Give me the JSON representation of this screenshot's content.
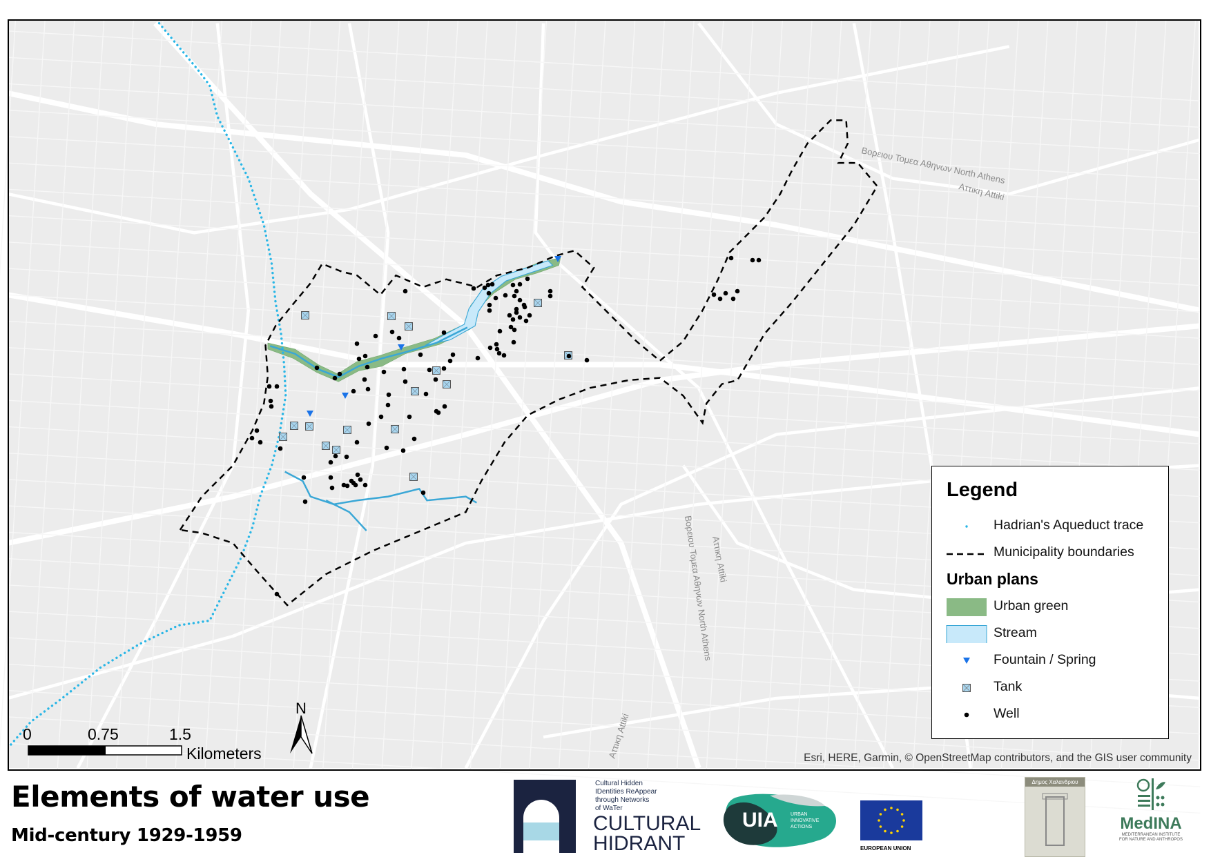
{
  "title": "Elements of water use",
  "subtitle": "Mid-century 1929-1959",
  "legend": {
    "heading": "Legend",
    "items": [
      {
        "label": "Hadrian's Aqueduct trace",
        "symbol": "dotted-line",
        "color": "#29b6e6"
      },
      {
        "label": "Municipality boundaries",
        "symbol": "dashed-line",
        "color": "#000000"
      }
    ],
    "group_heading": "Urban plans",
    "group_items": [
      {
        "label": "Urban green",
        "symbol": "fill",
        "color": "#8aba85"
      },
      {
        "label": "Stream",
        "symbol": "fill-outline",
        "color": "#c8e9fa",
        "outline": "#3aa7d6"
      },
      {
        "label": "Fountain / Spring",
        "symbol": "triangle-down",
        "color": "#1a73e8"
      },
      {
        "label": "Tank",
        "symbol": "boxed-x",
        "color": "#a9d6ef"
      },
      {
        "label": "Well",
        "symbol": "dot",
        "color": "#000000"
      }
    ]
  },
  "scale_bar": {
    "ticks": [
      "0",
      "0.75",
      "1.5"
    ],
    "unit": "Kilometers"
  },
  "north_arrow": {
    "label": "N"
  },
  "attribution": "Esri, HERE, Garmin, © OpenStreetMap contributors, and the GIS user community",
  "map_labels": [
    "Βορειου Τομεα Αθηνων North Athens",
    "Αττικη Attiki",
    "Βορειου Τομεα Αθηνων North Athens",
    "Αττικη Attiki",
    "Αττικη Attiki"
  ],
  "logos": {
    "cultural_hidrant": {
      "tagline": [
        "Cultural Hidden",
        "IDentities ReAppear",
        "through Networks",
        "of WaTer"
      ],
      "name": [
        "CULTURAL",
        "HIDRANT"
      ]
    },
    "uia": {
      "name": "UIA",
      "tagline": [
        "URBAN",
        "INNOVATIVE",
        "ACTIONS"
      ]
    },
    "eu": {
      "name": "EUROPEAN UNION"
    },
    "dimos": {
      "name": "Δημος Χαλανδριου"
    },
    "medina": {
      "name": "MedINA",
      "tagline": [
        "MEDITERRANEAN INSTITUTE",
        "FOR NATURE AND ANTHROPOS"
      ]
    }
  },
  "colors": {
    "basemap": "#ececec",
    "roads": "#ffffff",
    "aqueduct": "#29b6e6",
    "stream": "#c8e9fa",
    "green": "#8aba85",
    "fountain": "#1a73e8"
  }
}
